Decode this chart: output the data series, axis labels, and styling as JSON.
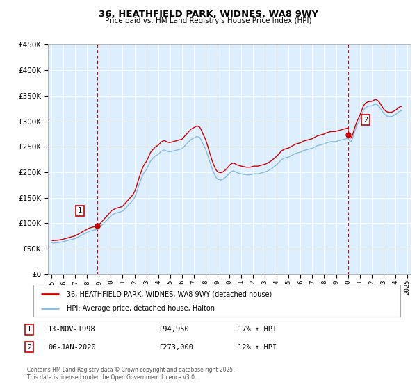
{
  "title": "36, HEATHFIELD PARK, WIDNES, WA8 9WY",
  "subtitle": "Price paid vs. HM Land Registry's House Price Index (HPI)",
  "ylim": [
    0,
    450000
  ],
  "yticks": [
    0,
    50000,
    100000,
    150000,
    200000,
    250000,
    300000,
    350000,
    400000,
    450000
  ],
  "legend_line1": "36, HEATHFIELD PARK, WIDNES, WA8 9WY (detached house)",
  "legend_line2": "HPI: Average price, detached house, Halton",
  "annotation1_date": "13-NOV-1998",
  "annotation1_price": "£94,950",
  "annotation1_hpi": "17% ↑ HPI",
  "annotation2_date": "06-JAN-2020",
  "annotation2_price": "£273,000",
  "annotation2_hpi": "12% ↑ HPI",
  "copyright": "Contains HM Land Registry data © Crown copyright and database right 2025.\nThis data is licensed under the Open Government Licence v3.0.",
  "line_color_red": "#cc0000",
  "line_color_blue": "#88bbdd",
  "annotation_box_color": "#cc0000",
  "background_color": "#ffffff",
  "chart_bg_color": "#ddeeff",
  "purchase1_year": 1998.87,
  "purchase1_price": 94950,
  "purchase2_year": 2020.02,
  "purchase2_price": 273000,
  "hpi_data": {
    "1995.0": 62000,
    "1995.08": 61500,
    "1995.17": 61200,
    "1995.25": 61800,
    "1995.33": 61500,
    "1995.42": 62000,
    "1995.5": 61800,
    "1995.58": 62200,
    "1995.67": 62500,
    "1995.75": 63000,
    "1995.83": 63200,
    "1995.92": 63500,
    "1996.0": 64000,
    "1996.08": 64500,
    "1996.17": 65000,
    "1996.25": 65500,
    "1996.33": 66000,
    "1996.42": 66500,
    "1996.5": 67000,
    "1996.58": 67500,
    "1996.67": 68000,
    "1996.75": 68500,
    "1996.83": 69000,
    "1996.92": 69500,
    "1997.0": 70000,
    "1997.08": 71000,
    "1997.17": 72000,
    "1997.25": 73000,
    "1997.33": 74000,
    "1997.42": 75000,
    "1997.5": 76000,
    "1997.58": 77000,
    "1997.67": 78000,
    "1997.75": 79000,
    "1997.83": 80000,
    "1997.92": 81000,
    "1998.0": 82000,
    "1998.08": 83000,
    "1998.17": 84000,
    "1998.25": 84500,
    "1998.33": 85000,
    "1998.42": 85500,
    "1998.5": 86000,
    "1998.58": 86500,
    "1998.67": 87000,
    "1998.75": 87500,
    "1998.83": 88000,
    "1998.92": 88500,
    "1999.0": 90000,
    "1999.08": 92000,
    "1999.17": 94000,
    "1999.25": 96000,
    "1999.33": 98000,
    "1999.42": 100000,
    "1999.5": 102000,
    "1999.58": 104000,
    "1999.67": 106000,
    "1999.75": 108000,
    "1999.83": 110000,
    "1999.92": 112000,
    "2000.0": 114000,
    "2000.08": 116000,
    "2000.17": 117000,
    "2000.25": 118000,
    "2000.33": 119000,
    "2000.42": 120000,
    "2000.5": 120500,
    "2000.58": 121000,
    "2000.67": 121500,
    "2000.75": 122000,
    "2000.83": 122500,
    "2000.92": 123000,
    "2001.0": 124000,
    "2001.08": 126000,
    "2001.17": 128000,
    "2001.25": 130000,
    "2001.33": 132000,
    "2001.42": 134000,
    "2001.5": 136000,
    "2001.58": 138000,
    "2001.67": 140000,
    "2001.75": 142000,
    "2001.83": 144000,
    "2001.92": 147000,
    "2002.0": 150000,
    "2002.08": 155000,
    "2002.17": 160000,
    "2002.25": 166000,
    "2002.33": 172000,
    "2002.42": 178000,
    "2002.5": 183000,
    "2002.58": 188000,
    "2002.67": 193000,
    "2002.75": 197000,
    "2002.83": 200000,
    "2002.92": 203000,
    "2003.0": 205000,
    "2003.08": 209000,
    "2003.17": 213000,
    "2003.25": 217000,
    "2003.33": 221000,
    "2003.42": 224000,
    "2003.5": 226000,
    "2003.58": 228000,
    "2003.67": 230000,
    "2003.75": 232000,
    "2003.83": 233000,
    "2003.92": 234000,
    "2004.0": 235000,
    "2004.08": 237000,
    "2004.17": 239000,
    "2004.25": 241000,
    "2004.33": 242000,
    "2004.42": 243000,
    "2004.5": 243500,
    "2004.58": 243000,
    "2004.67": 242000,
    "2004.75": 241000,
    "2004.83": 240500,
    "2004.92": 240000,
    "2005.0": 240000,
    "2005.08": 240500,
    "2005.17": 241000,
    "2005.25": 241500,
    "2005.33": 242000,
    "2005.42": 242500,
    "2005.5": 243000,
    "2005.58": 243500,
    "2005.67": 244000,
    "2005.75": 244500,
    "2005.83": 245000,
    "2005.92": 245500,
    "2006.0": 246000,
    "2006.08": 248000,
    "2006.17": 250000,
    "2006.25": 252000,
    "2006.33": 254000,
    "2006.42": 256000,
    "2006.5": 258000,
    "2006.58": 260000,
    "2006.67": 262000,
    "2006.75": 264000,
    "2006.83": 265000,
    "2006.92": 266000,
    "2007.0": 267000,
    "2007.08": 268000,
    "2007.17": 269000,
    "2007.25": 270000,
    "2007.33": 269500,
    "2007.42": 269000,
    "2007.5": 268000,
    "2007.58": 265000,
    "2007.67": 261000,
    "2007.75": 257000,
    "2007.83": 253000,
    "2007.92": 249000,
    "2008.0": 245000,
    "2008.08": 240000,
    "2008.17": 234000,
    "2008.25": 228000,
    "2008.33": 222000,
    "2008.42": 216000,
    "2008.5": 210000,
    "2008.58": 205000,
    "2008.67": 200000,
    "2008.75": 196000,
    "2008.83": 192000,
    "2008.92": 189000,
    "2009.0": 187000,
    "2009.08": 186000,
    "2009.17": 185500,
    "2009.25": 185000,
    "2009.33": 185500,
    "2009.42": 186000,
    "2009.5": 187000,
    "2009.58": 188500,
    "2009.67": 190000,
    "2009.75": 192000,
    "2009.83": 194000,
    "2009.92": 196000,
    "2010.0": 198000,
    "2010.08": 200000,
    "2010.17": 201000,
    "2010.25": 202000,
    "2010.33": 202500,
    "2010.42": 202000,
    "2010.5": 201000,
    "2010.58": 200000,
    "2010.67": 199000,
    "2010.75": 198500,
    "2010.83": 198000,
    "2010.92": 197500,
    "2011.0": 197000,
    "2011.08": 196500,
    "2011.17": 196000,
    "2011.25": 196000,
    "2011.33": 195500,
    "2011.42": 195000,
    "2011.5": 195000,
    "2011.58": 195000,
    "2011.67": 195000,
    "2011.75": 195000,
    "2011.83": 195500,
    "2011.92": 196000,
    "2012.0": 196500,
    "2012.08": 197000,
    "2012.17": 197000,
    "2012.25": 197000,
    "2012.33": 197000,
    "2012.42": 197000,
    "2012.5": 197500,
    "2012.58": 198000,
    "2012.67": 198500,
    "2012.75": 199000,
    "2012.83": 199500,
    "2012.92": 200000,
    "2013.0": 200500,
    "2013.08": 201000,
    "2013.17": 202000,
    "2013.25": 203000,
    "2013.33": 204000,
    "2013.42": 205000,
    "2013.5": 206000,
    "2013.58": 207500,
    "2013.67": 209000,
    "2013.75": 210500,
    "2013.83": 212000,
    "2013.92": 213500,
    "2014.0": 215000,
    "2014.08": 217000,
    "2014.17": 219000,
    "2014.25": 221000,
    "2014.33": 223000,
    "2014.42": 225000,
    "2014.5": 226000,
    "2014.58": 227000,
    "2014.67": 228000,
    "2014.75": 228500,
    "2014.83": 229000,
    "2014.92": 229500,
    "2015.0": 230000,
    "2015.08": 231000,
    "2015.17": 232000,
    "2015.25": 233000,
    "2015.33": 234000,
    "2015.42": 235000,
    "2015.5": 236000,
    "2015.58": 237000,
    "2015.67": 237500,
    "2015.75": 238000,
    "2015.83": 238500,
    "2015.92": 239000,
    "2016.0": 239500,
    "2016.08": 240500,
    "2016.17": 241500,
    "2016.25": 242500,
    "2016.33": 243000,
    "2016.42": 243500,
    "2016.5": 244000,
    "2016.58": 244500,
    "2016.67": 245000,
    "2016.75": 245500,
    "2016.83": 246000,
    "2016.92": 246500,
    "2017.0": 247000,
    "2017.08": 248000,
    "2017.17": 249000,
    "2017.25": 250000,
    "2017.33": 251000,
    "2017.42": 252000,
    "2017.5": 252500,
    "2017.58": 253000,
    "2017.67": 253500,
    "2017.75": 254000,
    "2017.83": 254500,
    "2017.92": 255000,
    "2018.0": 255500,
    "2018.08": 256500,
    "2018.17": 257500,
    "2018.25": 258000,
    "2018.33": 258500,
    "2018.42": 259000,
    "2018.5": 259500,
    "2018.58": 260000,
    "2018.67": 260000,
    "2018.75": 260000,
    "2018.83": 260000,
    "2018.92": 260000,
    "2019.0": 260500,
    "2019.08": 261000,
    "2019.17": 261500,
    "2019.25": 262000,
    "2019.33": 262500,
    "2019.42": 263000,
    "2019.5": 263500,
    "2019.58": 264000,
    "2019.67": 264500,
    "2019.75": 265000,
    "2019.83": 265500,
    "2019.92": 266000,
    "2020.0": 266500,
    "2020.08": 264000,
    "2020.17": 261000,
    "2020.25": 260000,
    "2020.33": 263000,
    "2020.42": 268000,
    "2020.5": 274000,
    "2020.58": 280000,
    "2020.67": 286000,
    "2020.75": 291000,
    "2020.83": 295000,
    "2020.92": 299000,
    "2021.0": 303000,
    "2021.08": 308000,
    "2021.17": 313000,
    "2021.25": 318000,
    "2021.33": 322000,
    "2021.42": 325000,
    "2021.5": 327000,
    "2021.58": 328000,
    "2021.67": 329000,
    "2021.75": 329500,
    "2021.83": 330000,
    "2021.92": 330000,
    "2022.0": 330000,
    "2022.08": 331000,
    "2022.17": 332000,
    "2022.25": 333000,
    "2022.33": 333500,
    "2022.42": 333000,
    "2022.5": 332000,
    "2022.58": 330000,
    "2022.67": 328000,
    "2022.75": 325000,
    "2022.83": 322000,
    "2022.92": 319000,
    "2023.0": 316000,
    "2023.08": 314000,
    "2023.17": 312000,
    "2023.25": 311000,
    "2023.33": 310000,
    "2023.42": 309500,
    "2023.5": 309000,
    "2023.58": 309000,
    "2023.67": 309500,
    "2023.75": 310000,
    "2023.83": 311000,
    "2023.92": 312000,
    "2024.0": 313000,
    "2024.08": 314500,
    "2024.17": 316000,
    "2024.25": 317500,
    "2024.33": 319000,
    "2024.42": 320000,
    "2024.5": 320500
  },
  "xtick_years": [
    1995,
    1996,
    1997,
    1998,
    1999,
    2000,
    2001,
    2002,
    2003,
    2004,
    2005,
    2006,
    2007,
    2008,
    2009,
    2010,
    2011,
    2012,
    2013,
    2014,
    2015,
    2016,
    2017,
    2018,
    2019,
    2020,
    2021,
    2022,
    2023,
    2024,
    2025
  ]
}
